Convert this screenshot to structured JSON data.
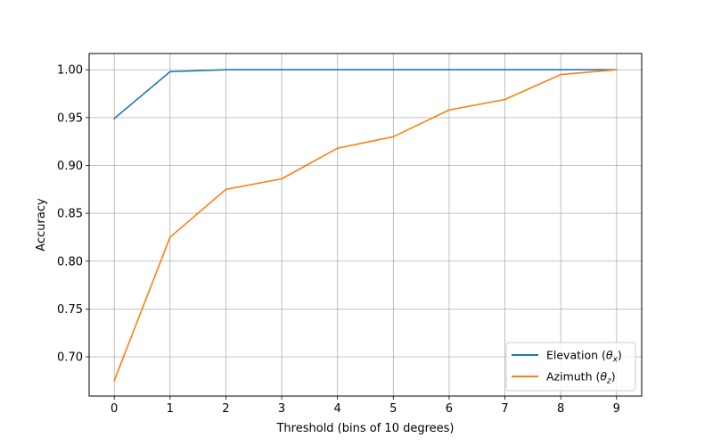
{
  "chart_data": {
    "type": "line",
    "title": "",
    "xlabel": "Threshold (bins of 10 degrees)",
    "ylabel": "Accuracy",
    "x": [
      0,
      1,
      2,
      3,
      4,
      5,
      6,
      7,
      8,
      9
    ],
    "xticks": [
      "0",
      "1",
      "2",
      "3",
      "4",
      "5",
      "6",
      "7",
      "8",
      "9"
    ],
    "yticks": [
      0.7,
      0.75,
      0.8,
      0.85,
      0.9,
      0.95,
      1.0
    ],
    "ytick_labels": [
      "0.70",
      "0.75",
      "0.80",
      "0.85",
      "0.90",
      "0.95",
      "1.00"
    ],
    "xlim": [
      -0.45,
      9.45
    ],
    "ylim": [
      0.659,
      1.017
    ],
    "grid": true,
    "legend_position": "lower-right",
    "series": [
      {
        "name_main": "Elevation (",
        "name_symbol": "θ",
        "name_sub": "x",
        "name_close": ")",
        "color": "#1f77b4",
        "values": [
          0.949,
          0.998,
          1.0,
          1.0,
          1.0,
          1.0,
          1.0,
          1.0,
          1.0,
          1.0
        ]
      },
      {
        "name_main": "Azimuth (",
        "name_symbol": "θ",
        "name_sub": "z",
        "name_close": ")",
        "color": "#ff7f0e",
        "values": [
          0.675,
          0.825,
          0.875,
          0.886,
          0.918,
          0.93,
          0.958,
          0.969,
          0.995,
          1.0
        ]
      }
    ]
  }
}
